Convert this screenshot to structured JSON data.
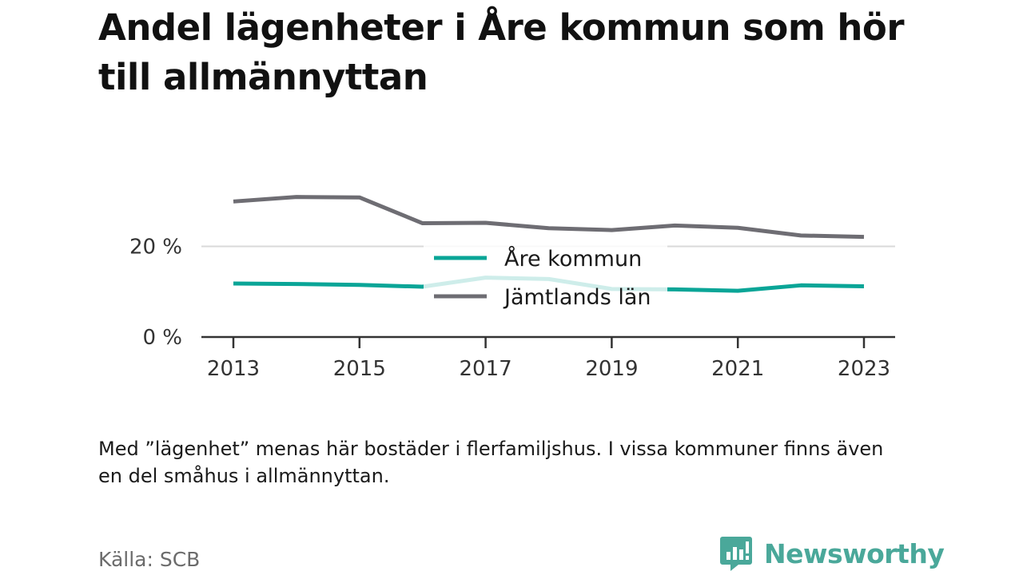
{
  "title": "Andel lägenheter i Åre kommun som hör till allmännyttan",
  "note": "Med ”lägenhet” menas här bostäder i flerfamiljshus. I vissa kommuner finns även en del småhus i allmännyttan.",
  "source": "Källa: SCB",
  "brand": {
    "name": "Newsworthy",
    "icon": "newsworthy-logo-icon",
    "color": "#4aa89a"
  },
  "chart_data": {
    "type": "line",
    "title": "Andel lägenheter i Åre kommun som hör till allmännyttan",
    "xlabel": "",
    "ylabel": "",
    "x": [
      2013,
      2014,
      2015,
      2016,
      2017,
      2018,
      2019,
      2020,
      2021,
      2022,
      2023
    ],
    "x_ticks": [
      "2013",
      "2015",
      "2017",
      "2019",
      "2021",
      "2023"
    ],
    "y_ticks": [
      "0 %",
      "20 %"
    ],
    "ylim": [
      0,
      40
    ],
    "grid": true,
    "legend_position": "center",
    "series": [
      {
        "name": "Åre kommun",
        "color": "#0aa597",
        "values": [
          11.8,
          11.7,
          11.5,
          11.1,
          13.1,
          12.8,
          10.6,
          10.5,
          10.2,
          11.4,
          11.2
        ]
      },
      {
        "name": "Jämtlands län",
        "color": "#6e6d73",
        "values": [
          29.9,
          30.9,
          30.8,
          25.1,
          25.2,
          24.0,
          23.6,
          24.6,
          24.1,
          22.4,
          22.1
        ]
      }
    ]
  }
}
